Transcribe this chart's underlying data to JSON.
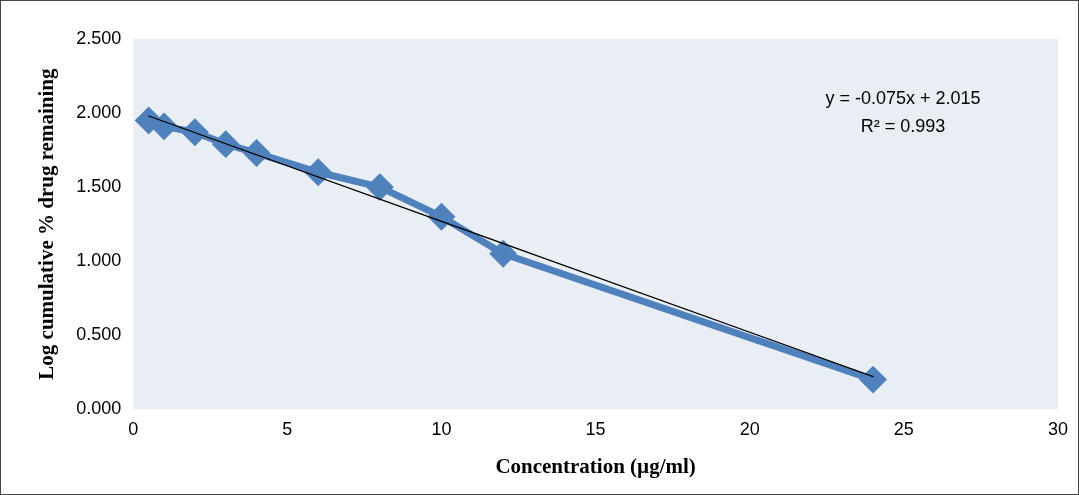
{
  "chart_data": {
    "type": "line",
    "xlabel": "Concentration (µg/ml)",
    "ylabel": "Log cumulative % drug remaining",
    "marker": "diamond",
    "grid": false,
    "legend": false,
    "xlim": [
      0,
      30
    ],
    "xticks": [
      0,
      5,
      10,
      15,
      20,
      25,
      30
    ],
    "ylim": [
      0,
      2.5
    ],
    "yticks": [
      {
        "value": 0,
        "label": "0.000"
      },
      {
        "value": 0.5,
        "label": "0.500"
      },
      {
        "value": 1,
        "label": "1.000"
      },
      {
        "value": 1.5,
        "label": "1.500"
      },
      {
        "value": 2,
        "label": "2.000"
      },
      {
        "value": 2.5,
        "label": "2.500"
      }
    ],
    "x": [
      0.5,
      1,
      2,
      3,
      4,
      6,
      8,
      10,
      12,
      24
    ],
    "series": [
      {
        "color": "#4f81bd",
        "values": [
          1.95,
          1.91,
          1.87,
          1.79,
          1.73,
          1.6,
          1.5,
          1.3,
          1.05,
          0.2
        ]
      },
      {
        "type": "line",
        "color": "#000000",
        "marker": "none",
        "x": [
          0.5,
          24
        ],
        "values": [
          1.98,
          0.22
        ]
      }
    ],
    "annotations": [
      "y = -0.075x + 2.015",
      "R² = 0.993"
    ]
  }
}
